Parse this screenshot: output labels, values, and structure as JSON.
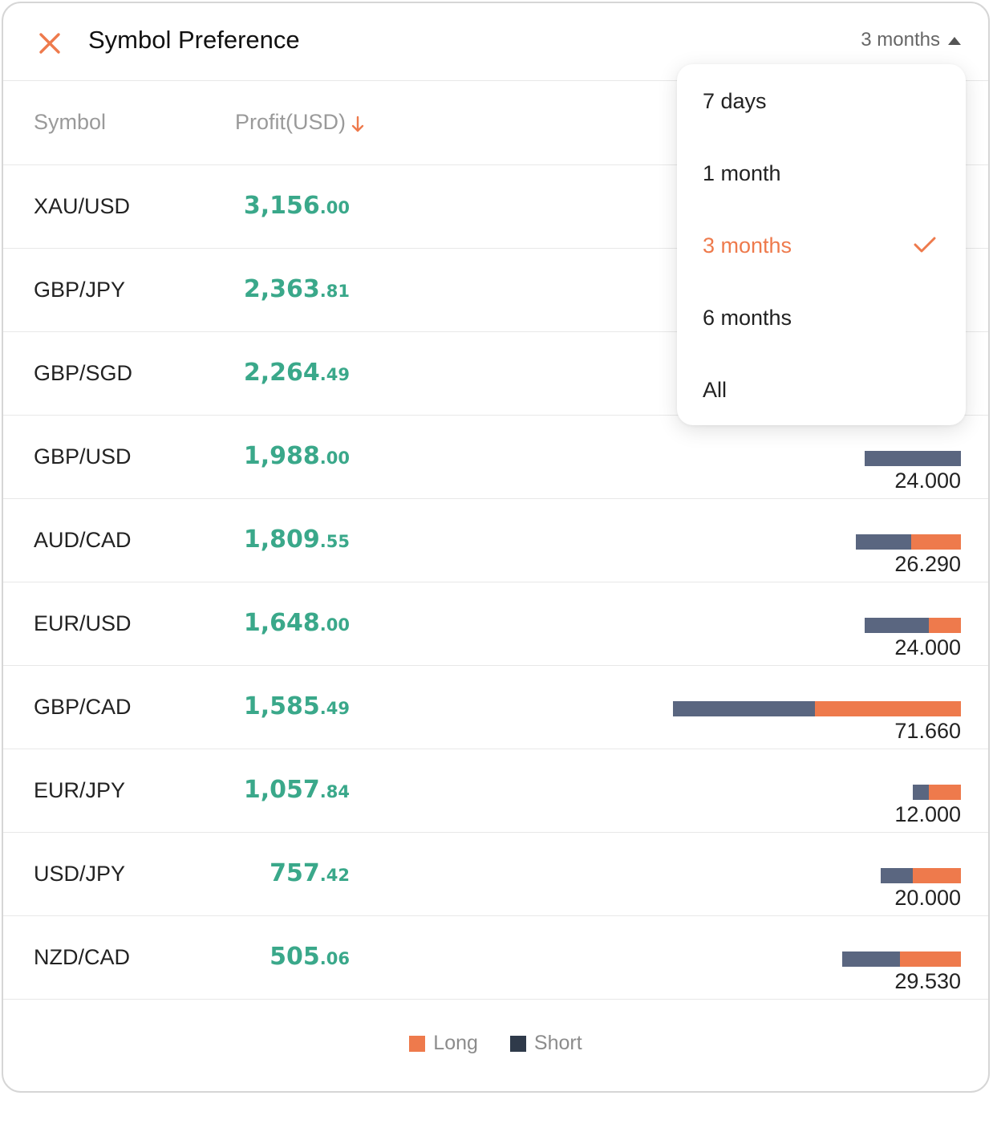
{
  "header": {
    "title": "Symbol Preference",
    "period_label": "3 months"
  },
  "columns": {
    "symbol": "Symbol",
    "profit": "Profit(USD)"
  },
  "rows": [
    {
      "symbol": "XAU/USD",
      "profit_int": "3,156",
      "profit_dec": ".00",
      "volume": "",
      "short": 0,
      "long": 0
    },
    {
      "symbol": "GBP/JPY",
      "profit_int": "2,363",
      "profit_dec": ".81",
      "volume": "",
      "short": 0,
      "long": 0
    },
    {
      "symbol": "GBP/SGD",
      "profit_int": "2,264",
      "profit_dec": ".49",
      "volume": "",
      "short": 0,
      "long": 0
    },
    {
      "symbol": "GBP/USD",
      "profit_int": "1,988",
      "profit_dec": ".00",
      "volume": "24.000",
      "short": 24.0,
      "long": 0
    },
    {
      "symbol": "AUD/CAD",
      "profit_int": "1,809",
      "profit_dec": ".55",
      "volume": "26.290",
      "short": 13.8,
      "long": 12.49
    },
    {
      "symbol": "EUR/USD",
      "profit_int": "1,648",
      "profit_dec": ".00",
      "volume": "24.000",
      "short": 16.0,
      "long": 8.0
    },
    {
      "symbol": "GBP/CAD",
      "profit_int": "1,585",
      "profit_dec": ".49",
      "volume": "71.660",
      "short": 35.3,
      "long": 36.36
    },
    {
      "symbol": "EUR/JPY",
      "profit_int": "1,057",
      "profit_dec": ".84",
      "volume": "12.000",
      "short": 4.0,
      "long": 8.0
    },
    {
      "symbol": "USD/JPY",
      "profit_int": "757",
      "profit_dec": ".42",
      "volume": "20.000",
      "short": 8.0,
      "long": 12.0
    },
    {
      "symbol": "NZD/CAD",
      "profit_int": "505",
      "profit_dec": ".06",
      "volume": "29.530",
      "short": 14.4,
      "long": 15.13
    }
  ],
  "legend": {
    "long": "Long",
    "short": "Short"
  },
  "dropdown": {
    "options": [
      "7 days",
      "1 month",
      "3 months",
      "6 months",
      "All"
    ],
    "selected": "3 months"
  },
  "colors": {
    "accent": "#ee7a4c",
    "short": "#5a6680",
    "profit": "#3aa88a",
    "legend_short": "#2f3a4a"
  }
}
